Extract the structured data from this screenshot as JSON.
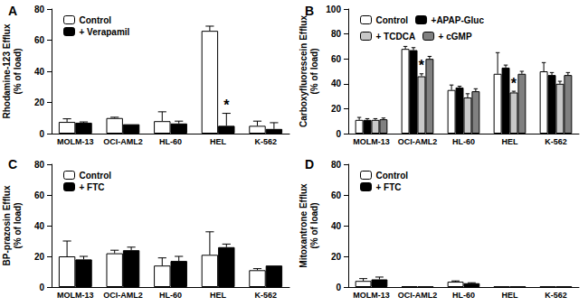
{
  "chart_data": [
    {
      "type": "bar",
      "title": "A",
      "y_label": "Rhodamine-123 Efflux\n(% of load)",
      "categories": [
        "MOLM-13",
        "OCI-AML2",
        "HL-60",
        "HEL",
        "K-562"
      ],
      "series": [
        {
          "name": "Control",
          "color": "#ffffff",
          "values": [
            7.5,
            10,
            8,
            66,
            5
          ],
          "errors": [
            2,
            0.5,
            6,
            3,
            3
          ]
        },
        {
          "name": "+ Verapamil",
          "color": "#000000",
          "values": [
            7,
            6,
            6.5,
            5,
            3
          ],
          "errors": [
            0.5,
            0,
            1.5,
            8,
            4
          ]
        }
      ],
      "annotations": [
        {
          "text": "*",
          "series": "+ Verapamil",
          "category": "HEL"
        }
      ],
      "ylim": [
        0,
        80
      ],
      "yticks": [
        0,
        20,
        40,
        60,
        80
      ],
      "grid": false,
      "legend": "upper left"
    },
    {
      "type": "bar",
      "title": "B",
      "y_label": "Carboxyfluorescein Efflux\n(% of load)",
      "categories": [
        "MOLM-13",
        "OCI-AML2",
        "HL-60",
        "HEL",
        "K-562"
      ],
      "series": [
        {
          "name": "Control",
          "color": "#ffffff",
          "values": [
            11,
            68,
            35,
            48,
            50
          ],
          "errors": [
            2,
            2,
            4,
            17,
            7
          ]
        },
        {
          "name": "+APAP-Gluc",
          "color": "#000000",
          "values": [
            11,
            67,
            37,
            53,
            47
          ],
          "errors": [
            1,
            2,
            1,
            2,
            2
          ]
        },
        {
          "name": "+ TCDCA",
          "color": "#c8c8c8",
          "values": [
            11,
            46,
            29,
            33,
            40
          ],
          "errors": [
            1,
            2,
            3,
            1,
            2
          ]
        },
        {
          "name": "+ cGMP",
          "color": "#808080",
          "values": [
            11.5,
            60,
            34,
            48,
            47
          ],
          "errors": [
            1,
            2,
            2,
            2,
            2
          ]
        }
      ],
      "annotations": [
        {
          "text": "*",
          "series": "+ TCDCA",
          "category": "OCI-AML2"
        },
        {
          "text": "*",
          "series": "+ TCDCA",
          "category": "HEL"
        }
      ],
      "ylim": [
        0,
        100
      ],
      "yticks": [
        0,
        20,
        40,
        60,
        80,
        100
      ],
      "grid": false,
      "legend": "upper left"
    },
    {
      "type": "bar",
      "title": "C",
      "y_label": "BP-prazosin Efflux\n(% of load)",
      "categories": [
        "MOLM-13",
        "OCI-AML2",
        "HL-60",
        "HEL",
        "K-562"
      ],
      "series": [
        {
          "name": "Control",
          "color": "#ffffff",
          "values": [
            20,
            22,
            14,
            21,
            11
          ],
          "errors": [
            10,
            2,
            5,
            15,
            1
          ]
        },
        {
          "name": "+ FTC",
          "color": "#000000",
          "values": [
            18,
            24,
            17,
            26,
            14
          ],
          "errors": [
            2,
            2,
            3,
            2,
            0
          ]
        }
      ],
      "annotations": [],
      "ylim": [
        0,
        80
      ],
      "yticks": [
        0,
        20,
        40,
        60,
        80
      ],
      "grid": false,
      "legend": "upper left"
    },
    {
      "type": "bar",
      "title": "D",
      "y_label": "Mitoxantrone Efflux\n(% of load)",
      "categories": [
        "MOLM-13",
        "OCI-AML2",
        "HL-60",
        "HEL",
        "K-562"
      ],
      "series": [
        {
          "name": "Control",
          "color": "#ffffff",
          "values": [
            4,
            0.5,
            3.5,
            0.3,
            0.3
          ],
          "errors": [
            1.5,
            0,
            0.5,
            0,
            0
          ]
        },
        {
          "name": "+ FTC",
          "color": "#000000",
          "values": [
            5,
            0.3,
            2.5,
            0.3,
            0.3
          ],
          "errors": [
            1.5,
            0,
            0.3,
            0,
            0
          ]
        }
      ],
      "annotations": [],
      "ylim": [
        0,
        80
      ],
      "yticks": [
        0,
        20,
        40,
        60,
        80
      ],
      "grid": false,
      "legend": "upper left"
    }
  ]
}
